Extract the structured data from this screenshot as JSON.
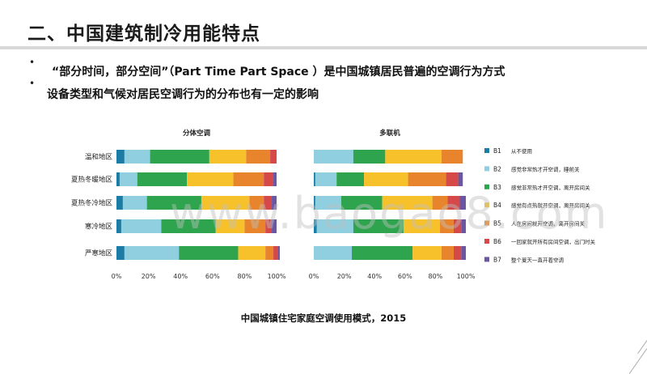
{
  "header": {
    "title": "二、中国建筑制冷用能特点"
  },
  "bullets": {
    "text1": "“部分时间，部分空间”（Part Time Part Space ）是中国城镇居民普遍的空调行为方式",
    "text2": "设备类型和气候对居民空调行为的分布也有一定的影响"
  },
  "footer": {
    "caption": "中国城镇住宅家庭空调使用模式，2015"
  },
  "watermark": "www.baogao8.com",
  "chart_data": {
    "type": "bar",
    "orientation": "horizontal",
    "stacked": true,
    "categories": [
      "温和地区",
      "夏热冬暖地区",
      "夏热冬冷地区",
      "寒冷地区",
      "严寒地区"
    ],
    "x_ticks": [
      "0%",
      "20%",
      "40%",
      "60%",
      "80%",
      "100%"
    ],
    "xlim": [
      0,
      100
    ],
    "legend_position": "right",
    "colors": [
      "#1b7da6",
      "#8fcfe0",
      "#2ea44f",
      "#f7c12b",
      "#e8852c",
      "#d64949",
      "#6a56a3"
    ],
    "legend": [
      {
        "code": "B1",
        "desc": "从不使用"
      },
      {
        "code": "B2",
        "desc": "感觉非常热才开空调，睡前关"
      },
      {
        "code": "B3",
        "desc": "感觉非常热才开空调，离开房间关"
      },
      {
        "code": "B4",
        "desc": "感觉有点热就开空调，离开房间关"
      },
      {
        "code": "B5",
        "desc": "人在房间就开空调，离开房间关"
      },
      {
        "code": "B6",
        "desc": "一回家就开所有房间空调，出门时关"
      },
      {
        "code": "B7",
        "desc": "整个夏天一直开着空调"
      }
    ],
    "panels": [
      {
        "title": "分体空调",
        "data": [
          [
            5,
            16,
            37,
            23,
            15,
            4,
            0
          ],
          [
            2,
            11,
            31,
            29,
            19,
            6,
            2
          ],
          [
            4,
            15,
            34,
            30,
            9,
            5,
            3
          ],
          [
            3,
            25,
            34,
            18,
            13,
            4,
            3
          ],
          [
            5,
            34,
            37,
            17,
            5,
            3,
            1
          ]
        ]
      },
      {
        "title": "多联机",
        "data": [
          [
            0,
            26,
            21,
            37,
            14,
            0,
            0
          ],
          [
            1,
            14,
            18,
            29,
            25,
            8,
            3
          ],
          [
            1,
            17,
            27,
            33,
            10,
            8,
            4
          ],
          [
            2,
            24,
            33,
            24,
            9,
            5,
            3
          ],
          [
            0,
            25,
            40,
            19,
            8,
            5,
            3
          ]
        ]
      }
    ]
  }
}
